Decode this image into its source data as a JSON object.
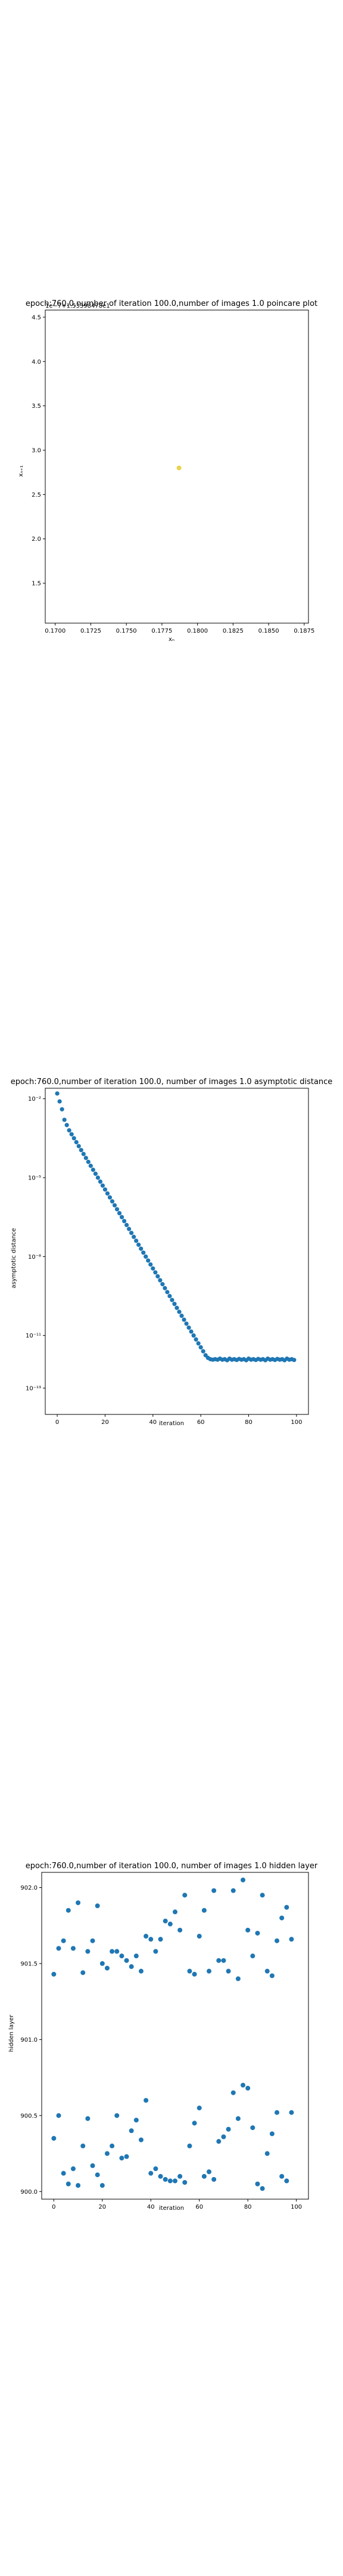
{
  "chart_data": [
    {
      "type": "scatter",
      "title": "epoch:760.0,number of iteration 100.0,number of images 1.0 poincare plot",
      "xlabel": "xₙ",
      "ylabel": "xₙ₊₁",
      "xlim": [
        0.1693,
        0.1878
      ],
      "ylim": [
        1.05,
        4.58
      ],
      "xticks": [
        "0.1700",
        "0.1725",
        "0.1750",
        "0.1775",
        "0.1800",
        "0.1825",
        "0.1850",
        "0.1875"
      ],
      "yticks": [
        "1.5",
        "2.0",
        "2.5",
        "3.0",
        "3.5",
        "4.0",
        "4.5"
      ],
      "grid": false,
      "offset_text": "1e−7+1.53398478e1",
      "points": [
        {
          "x": 0.1787,
          "y": 2.8
        }
      ],
      "color": "#e8d44d"
    },
    {
      "type": "scatter",
      "title": "epoch:760.0,number of iteration 100.0,  number of images 1.0 asymptotic distance",
      "xlabel": "iteration",
      "ylabel": "asymptotic distance",
      "xlim": [
        -5,
        105
      ],
      "yscale": "log",
      "ylim_exp": [
        -14,
        -1.6
      ],
      "xticks": [
        "0",
        "20",
        "40",
        "60",
        "80",
        "100"
      ],
      "yticks": [
        "10⁻²",
        "10⁻⁵",
        "10⁻⁸",
        "10⁻¹¹",
        "10⁻¹³"
      ],
      "grid": false,
      "color": "#1f77b4",
      "series": [
        {
          "model": "log10 distance decreases about linearly from ~2e-2 at iteration 0 to ~1e-13 near iteration 63, then stays flat near 1e-13",
          "x": [
            0,
            1,
            2,
            3,
            4,
            5,
            6,
            7,
            8,
            9,
            10,
            11,
            12,
            13,
            14,
            15,
            16,
            17,
            18,
            19,
            20,
            21,
            22,
            23,
            24,
            25,
            26,
            27,
            28,
            29,
            30,
            31,
            32,
            33,
            34,
            35,
            36,
            37,
            38,
            39,
            40,
            41,
            42,
            43,
            44,
            45,
            46,
            47,
            48,
            49,
            50,
            51,
            52,
            53,
            54,
            55,
            56,
            57,
            58,
            59,
            60,
            61,
            62,
            63,
            64,
            65,
            66,
            67,
            68,
            69,
            70,
            71,
            72,
            73,
            74,
            75,
            76,
            77,
            78,
            79,
            80,
            81,
            82,
            83,
            84,
            85,
            86,
            87,
            88,
            89,
            90,
            91,
            92,
            93,
            94,
            95,
            96,
            97,
            98,
            99
          ],
          "y_log10": [
            -1.8,
            -2.1,
            -2.4,
            -2.8,
            -3.0,
            -3.2,
            -3.35,
            -3.5,
            -3.65,
            -3.8,
            -3.95,
            -4.1,
            -4.25,
            -4.4,
            -4.55,
            -4.7,
            -4.85,
            -5.0,
            -5.15,
            -5.3,
            -5.45,
            -5.6,
            -5.75,
            -5.9,
            -6.05,
            -6.2,
            -6.35,
            -6.5,
            -6.65,
            -6.8,
            -6.95,
            -7.1,
            -7.25,
            -7.4,
            -7.55,
            -7.7,
            -7.85,
            -8.0,
            -8.15,
            -8.3,
            -8.45,
            -8.6,
            -8.75,
            -8.9,
            -9.05,
            -9.2,
            -9.35,
            -9.5,
            -9.65,
            -9.8,
            -9.95,
            -10.1,
            -10.25,
            -10.4,
            -10.55,
            -10.7,
            -10.85,
            -11.0,
            -11.15,
            -11.3,
            -11.45,
            -11.6,
            -11.75,
            -11.85,
            -11.9,
            -11.92,
            -11.9,
            -11.92,
            -11.88,
            -11.92,
            -11.9,
            -11.94,
            -11.88,
            -11.92,
            -11.9,
            -11.93,
            -11.89,
            -11.92,
            -11.9,
            -11.94,
            -11.88,
            -11.92,
            -11.9,
            -11.93,
            -11.89,
            -11.92,
            -11.9,
            -11.94,
            -11.88,
            -11.92,
            -11.9,
            -11.93,
            -11.89,
            -11.92,
            -11.9,
            -11.94,
            -11.88,
            -11.92,
            -11.9,
            -11.93
          ]
        }
      ]
    },
    {
      "type": "scatter",
      "title": "epoch:760.0,number of iteration 100.0,  number of images 1.0 hidden layer",
      "xlabel": "iteration",
      "ylabel": "hidden layer",
      "xlim": [
        -5,
        105
      ],
      "ylim": [
        899.95,
        902.1
      ],
      "xticks": [
        "0",
        "20",
        "40",
        "60",
        "80",
        "100"
      ],
      "yticks": [
        "900.0",
        "900.5",
        "901.0",
        "901.5",
        "902.0"
      ],
      "grid": false,
      "color": "#1f77b4",
      "series": [
        {
          "x": [
            0,
            2,
            4,
            6,
            8,
            10,
            12,
            14,
            16,
            18,
            20,
            22,
            24,
            26,
            28,
            30,
            32,
            34,
            36,
            38,
            40,
            42,
            44,
            46,
            48,
            50,
            52,
            54,
            56,
            58,
            60,
            62,
            64,
            66,
            68,
            70,
            72,
            74,
            76,
            78,
            80,
            82,
            84,
            86,
            88,
            90,
            92,
            94,
            96,
            98
          ],
          "y": [
            901.43,
            901.6,
            901.65,
            901.85,
            901.6,
            901.9,
            901.44,
            901.58,
            901.65,
            901.88,
            901.5,
            901.47,
            901.58,
            901.58,
            901.55,
            901.52,
            901.48,
            901.55,
            901.45,
            901.68,
            901.66,
            901.58,
            901.66,
            901.78,
            901.76,
            901.84,
            901.72,
            901.95,
            901.45,
            901.43,
            901.68,
            901.85,
            901.45,
            901.98,
            901.52,
            901.52,
            901.45,
            901.98,
            901.4,
            902.05,
            901.72,
            901.55,
            901.7,
            901.95,
            901.45,
            901.42,
            901.65,
            901.8,
            901.87,
            901.66
          ]
        },
        {
          "x": [
            0,
            2,
            4,
            6,
            8,
            10,
            12,
            14,
            16,
            18,
            20,
            22,
            24,
            26,
            28,
            30,
            32,
            34,
            36,
            38,
            40,
            42,
            44,
            46,
            48,
            50,
            52,
            54,
            56,
            58,
            60,
            62,
            64,
            66,
            68,
            70,
            72,
            74,
            76,
            78,
            80,
            82,
            84,
            86,
            88,
            90,
            92,
            94,
            96,
            98
          ],
          "y": [
            900.35,
            900.5,
            900.12,
            900.05,
            900.15,
            900.04,
            900.3,
            900.48,
            900.17,
            900.11,
            900.04,
            900.25,
            900.3,
            900.5,
            900.22,
            900.23,
            900.4,
            900.47,
            900.34,
            900.6,
            900.12,
            900.15,
            900.1,
            900.08,
            900.07,
            900.07,
            900.1,
            900.06,
            900.3,
            900.45,
            900.55,
            900.1,
            900.13,
            900.08,
            900.33,
            900.36,
            900.41,
            900.65,
            900.48,
            900.7,
            900.68,
            900.42,
            900.05,
            900.02,
            900.25,
            900.38,
            900.52,
            900.1,
            900.07,
            900.52
          ]
        }
      ]
    }
  ]
}
